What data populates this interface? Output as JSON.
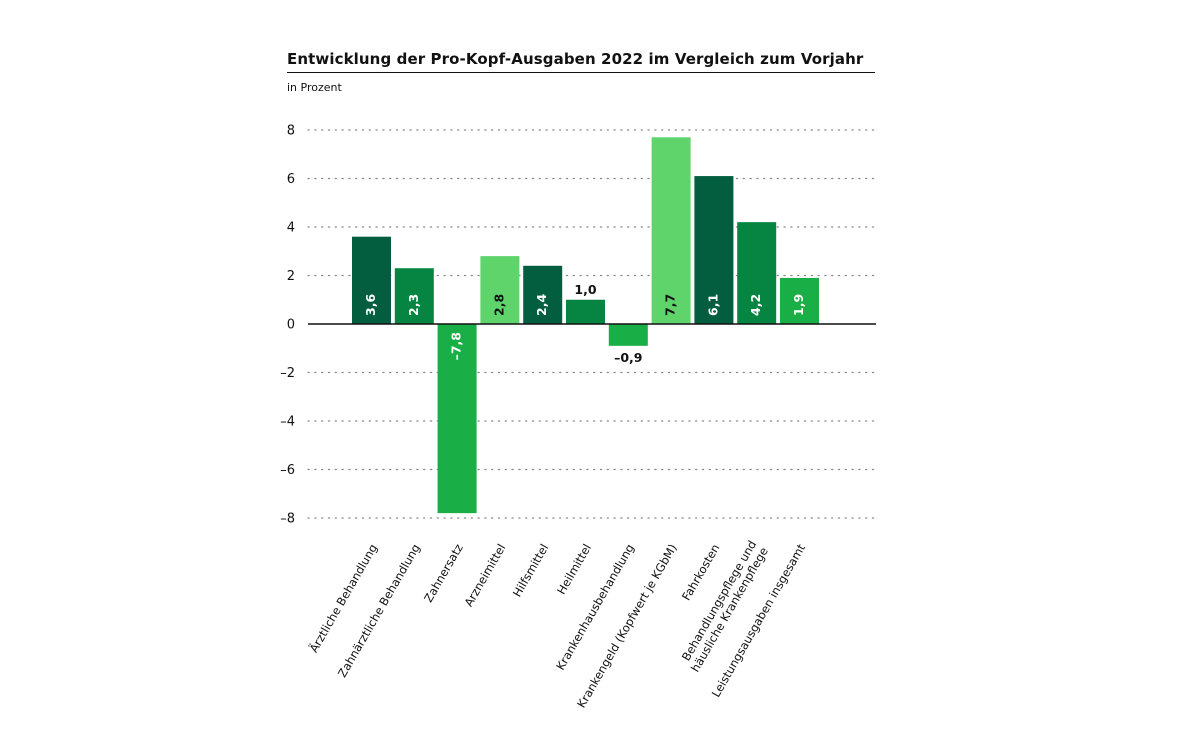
{
  "title": "Entwicklung der Pro-Kopf-Ausgaben 2022 im Vergleich zum Vorjahr",
  "subtitle": "in Prozent",
  "colors": {
    "dark": "#035e3f",
    "mid": "#058541",
    "bright": "#1aae46",
    "light": "#5ed46b",
    "text": "#111111",
    "grid": "#888888"
  },
  "chart_data": {
    "type": "bar",
    "title": "Entwicklung der Pro-Kopf-Ausgaben 2022 im Vergleich zum Vorjahr",
    "subtitle": "in Prozent",
    "xlabel": "",
    "ylabel": "",
    "ylim": [
      -8,
      8
    ],
    "yticks": [
      8,
      6,
      4,
      2,
      0,
      -2,
      -4,
      -6,
      -8
    ],
    "ytick_labels": [
      "8",
      "6",
      "4",
      "2",
      "0",
      "–2",
      "–4",
      "–6",
      "–8"
    ],
    "grid": "horizontal dotted",
    "categories": [
      "Ärztliche Behandlung",
      "Zahnärztliche Behandlung",
      "Zahnersatz",
      "Arzneimittel",
      "Hilfsmittel",
      "Heilmittel",
      "Krankenhausbehandlung",
      "Krankengeld (Kopfwert je KGbM)",
      "Fahrkosten",
      [
        "Behandlungspflege und",
        "häusliche Krankenpflege"
      ],
      "Leistungsausgaben insgesamt"
    ],
    "values": [
      3.6,
      2.3,
      -7.8,
      2.8,
      2.4,
      1.0,
      -0.9,
      7.7,
      6.1,
      4.2,
      1.9
    ],
    "labels": [
      "3,6",
      "2,3",
      "–7,8",
      "2,8",
      "2,4",
      "1,0",
      "–0,9",
      "7,7",
      "6,1",
      "4,2",
      "1,9"
    ],
    "bar_colors": [
      "dark",
      "mid",
      "bright",
      "light",
      "dark",
      "mid",
      "bright",
      "light",
      "dark",
      "mid",
      "bright"
    ],
    "label_position": [
      "inside",
      "inside",
      "inside",
      "inside",
      "inside",
      "outside",
      "outside",
      "inside",
      "inside",
      "inside",
      "inside"
    ]
  }
}
